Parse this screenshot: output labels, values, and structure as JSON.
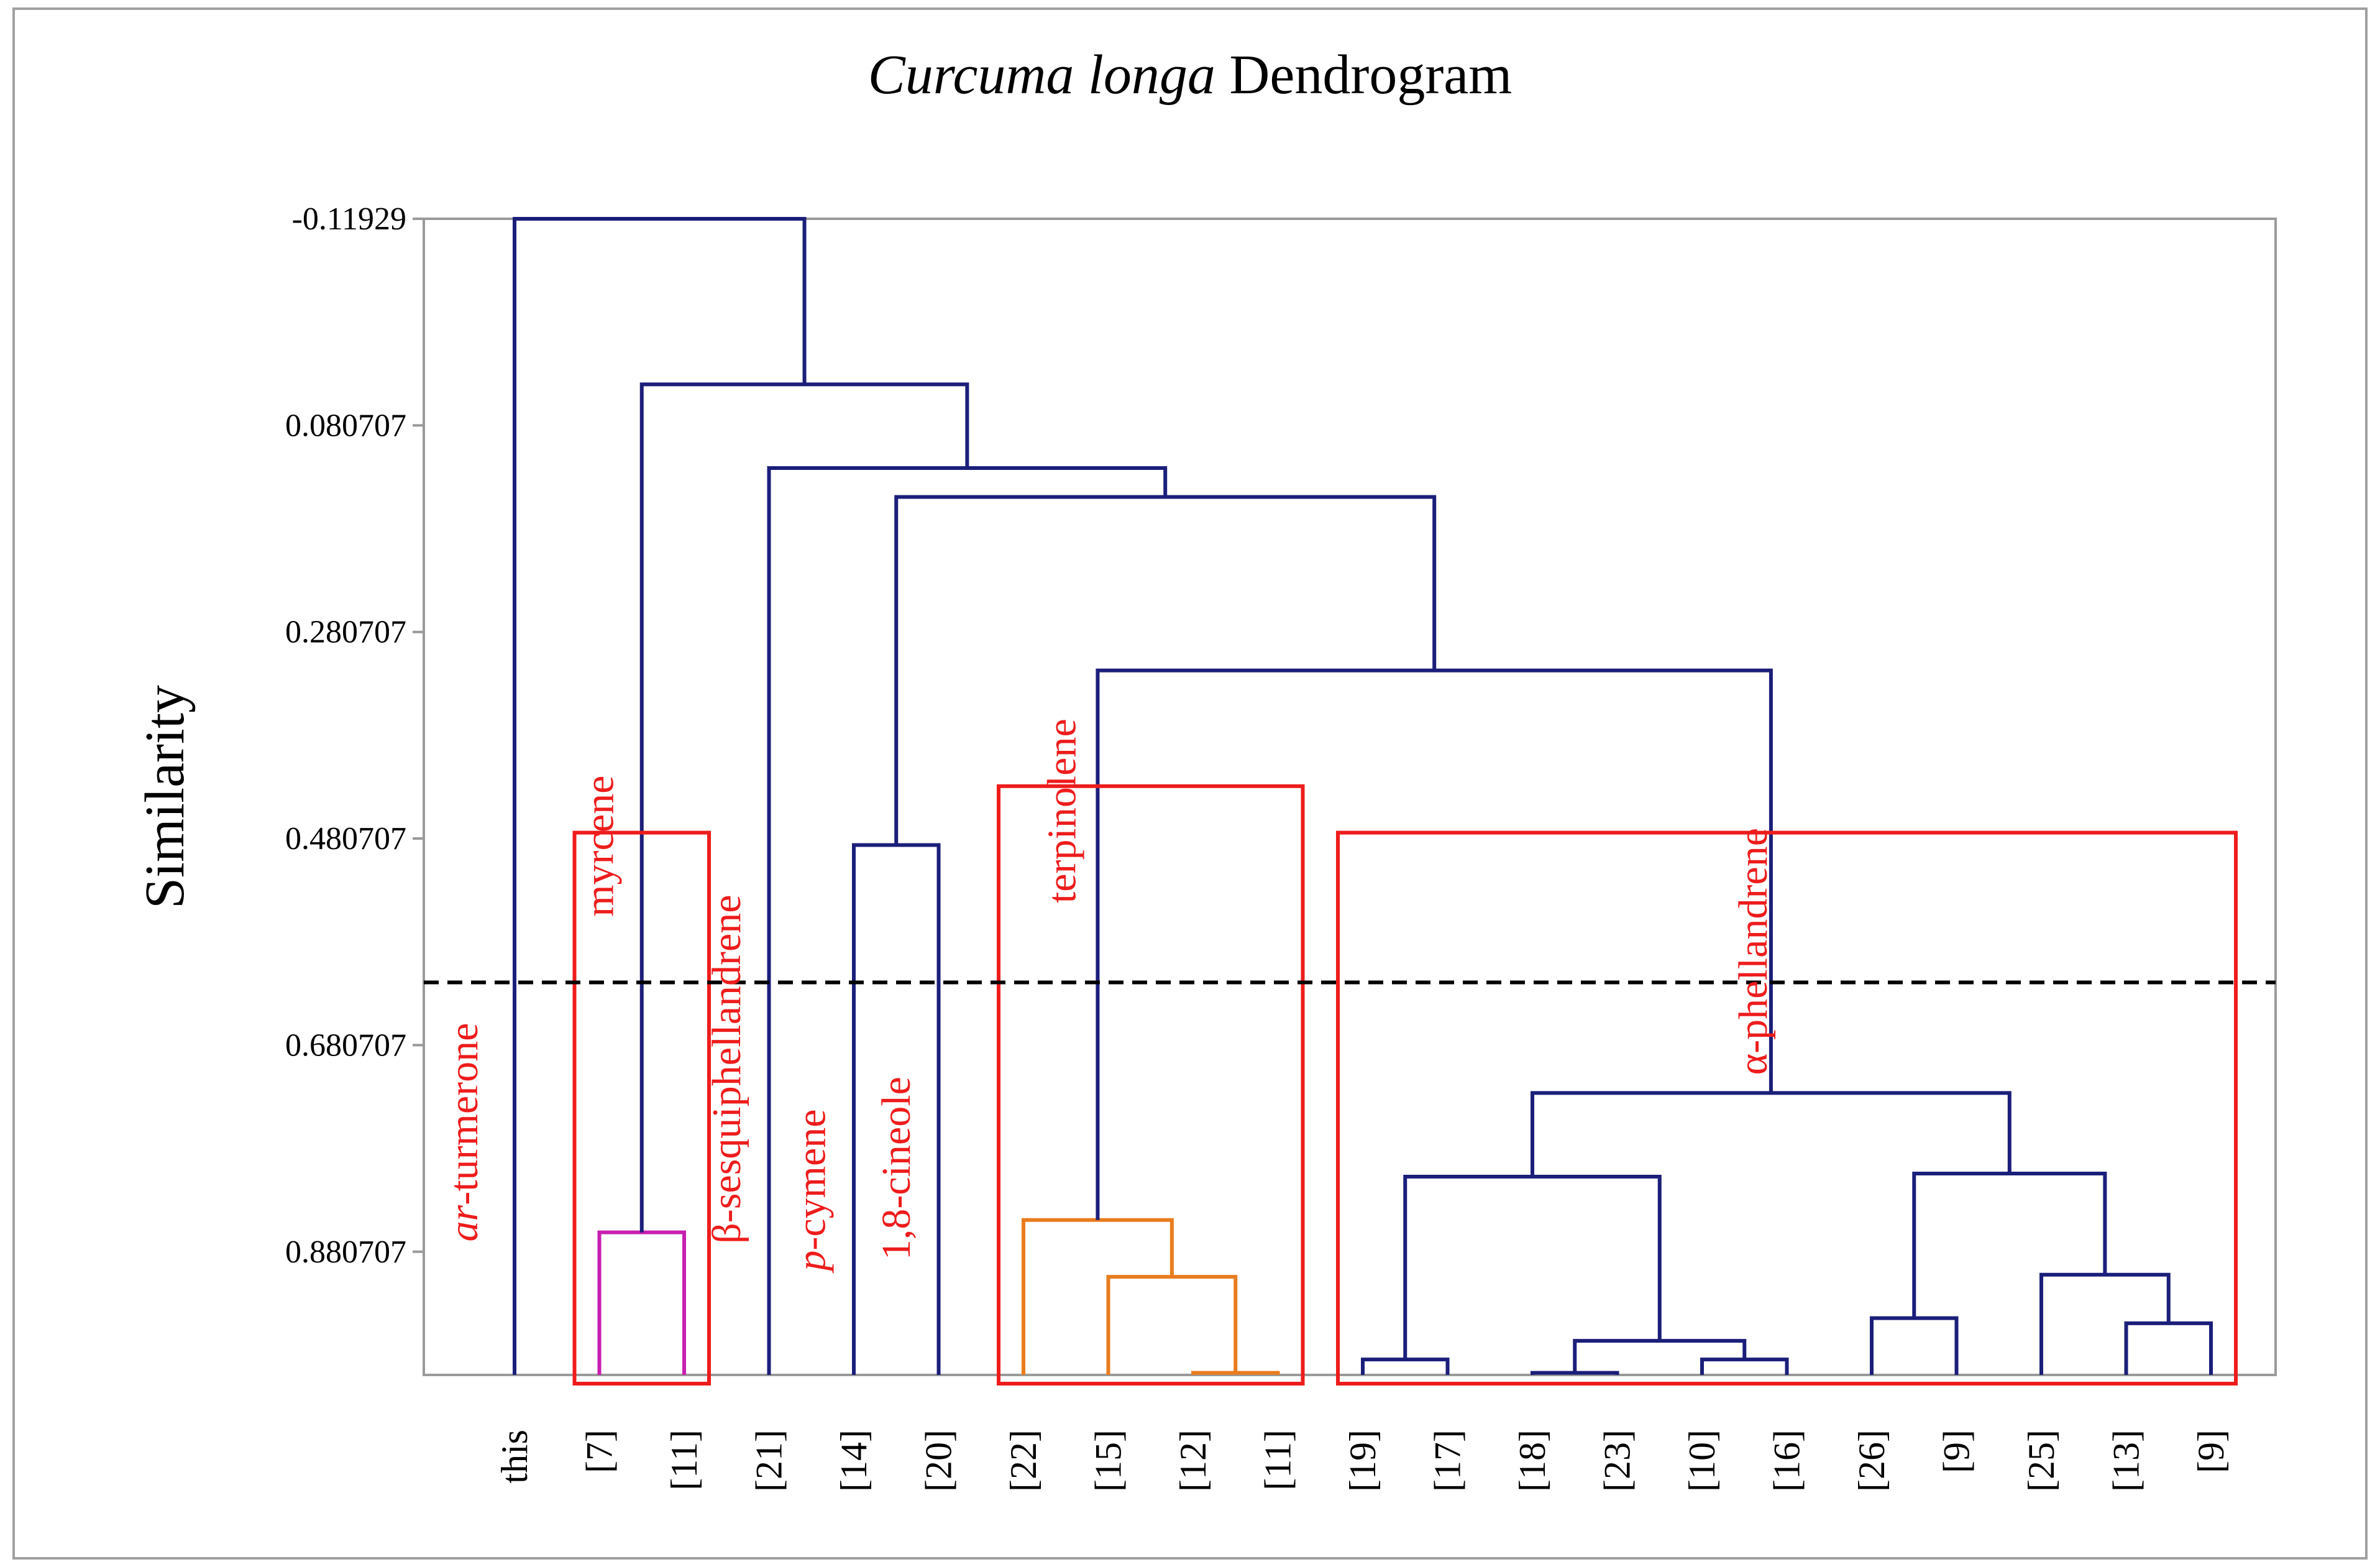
{
  "chart_data": {
    "type": "dendrogram",
    "title_italic": "Curcuma longa",
    "title_rest": " Dendrogram",
    "ylabel": "Similarity",
    "ylim": [
      -0.11929,
      1.0
    ],
    "yticks": [
      "-0.11929",
      "0.080707",
      "0.280707",
      "0.480707",
      "0.680707",
      "0.880707"
    ],
    "ytick_values": [
      -0.11929,
      0.080707,
      0.280707,
      0.480707,
      0.680707,
      0.880707
    ],
    "leaves": [
      "this",
      "[7]",
      "[11]",
      "[21]",
      "[14]",
      "[20]",
      "[22]",
      "[15]",
      "[12]",
      "[11]",
      "[19]",
      "[17]",
      "[18]",
      "[23]",
      "[10]",
      "[16]",
      "[26]",
      "[9]",
      "[25]",
      "[13]",
      "[9]"
    ],
    "cutoff_similarity": 0.62,
    "colors": {
      "tree": "#1b1f7a",
      "magenta": "#c71fb0",
      "orange": "#e97c1e",
      "box": "#ee1c1c",
      "axis": "#9a9a9a",
      "cutoff": "#000000"
    },
    "merges": [
      {
        "a": 1,
        "b": 2,
        "sim": 0.862,
        "color": "magenta"
      },
      {
        "a": 8,
        "b": 9,
        "sim": 0.998,
        "color": "orange"
      },
      {
        "a": 7,
        "b": "m2",
        "sim": 0.905,
        "color": "orange"
      },
      {
        "a": 6,
        "b": "m3",
        "sim": 0.85,
        "color": "orange"
      },
      {
        "a": 4,
        "b": 5,
        "sim": 0.487,
        "color": "tree"
      },
      {
        "a": 10,
        "b": 11,
        "sim": 0.985,
        "color": "tree"
      },
      {
        "a": 12,
        "b": 13,
        "sim": 0.998,
        "color": "tree"
      },
      {
        "a": 14,
        "b": 15,
        "sim": 0.985,
        "color": "tree"
      },
      {
        "a": "m7",
        "b": "m8",
        "sim": 0.967,
        "color": "tree"
      },
      {
        "a": "m6",
        "b": "m9",
        "sim": 0.808,
        "color": "tree"
      },
      {
        "a": 16,
        "b": 17,
        "sim": 0.945,
        "color": "tree"
      },
      {
        "a": 19,
        "b": 20,
        "sim": 0.95,
        "color": "tree"
      },
      {
        "a": 18,
        "b": "m12",
        "sim": 0.903,
        "color": "tree"
      },
      {
        "a": "m11",
        "b": "m13",
        "sim": 0.805,
        "color": "tree"
      },
      {
        "a": "m10",
        "b": "m14",
        "sim": 0.727,
        "color": "tree"
      },
      {
        "a": "m4",
        "b": "m15",
        "sim": 0.318,
        "color": "tree"
      },
      {
        "a": "m5",
        "b": "m16",
        "sim": 0.15,
        "color": "tree"
      },
      {
        "a": 3,
        "b": "m17",
        "sim": 0.122,
        "color": "tree"
      },
      {
        "a": "m1",
        "b": "m18",
        "sim": 0.041,
        "color": "tree"
      },
      {
        "a": 0,
        "b": "m19",
        "sim": -0.11929,
        "color": "tree"
      }
    ],
    "group_boxes": [
      {
        "from_leaf": 1,
        "to_leaf": 2,
        "top_sim": 0.475
      },
      {
        "from_leaf": 6,
        "to_leaf": 9,
        "top_sim": 0.43
      },
      {
        "from_leaf": 10,
        "to_leaf": 20,
        "top_sim": 0.475
      }
    ],
    "group_labels": [
      {
        "italic": "ar",
        "text": "-turmerone",
        "leaf_pos": -0.6,
        "center_sim": 0.765
      },
      {
        "italic": "",
        "text": "myrcene",
        "leaf_pos": 1.0,
        "center_sim": 0.488
      },
      {
        "italic": "",
        "text": "β-sesquiphellandrene",
        "leaf_pos": 2.5,
        "center_sim": 0.704
      },
      {
        "italic": "p",
        "text": "-cymene",
        "leaf_pos": 3.5,
        "center_sim": 0.821
      },
      {
        "italic": "",
        "text": "1,8-cineole",
        "leaf_pos": 4.5,
        "center_sim": 0.8
      },
      {
        "italic": "",
        "text": "terpinolene",
        "leaf_pos": 6.45,
        "center_sim": 0.454
      },
      {
        "italic": "",
        "text": "α-phellandrene",
        "leaf_pos": 14.6,
        "center_sim": 0.59
      }
    ]
  }
}
